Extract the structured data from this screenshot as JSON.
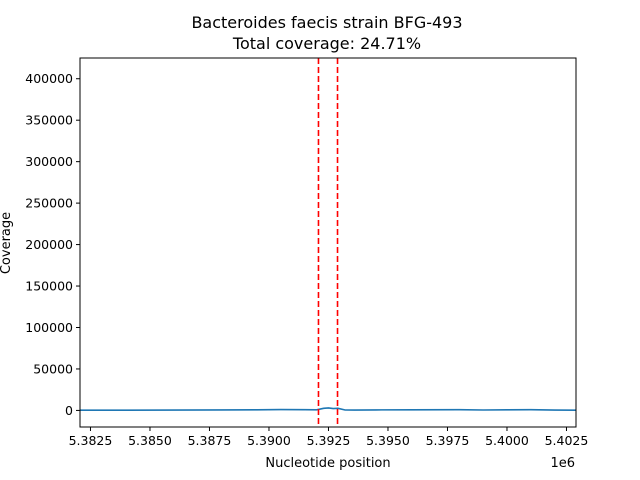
{
  "chart_data": {
    "type": "line",
    "title": "Bacteroides faecis strain BFG-493",
    "subtitle": "Total coverage: 24.71%",
    "xlabel": "Nucleotide position",
    "ylabel": "Coverage",
    "x_offset_label": "1e6",
    "xlim": [
      5382060,
      5402900
    ],
    "ylim": [
      -20000,
      425000
    ],
    "xticks": [
      {
        "value": 5382500,
        "label": "5.3825"
      },
      {
        "value": 5385000,
        "label": "5.3850"
      },
      {
        "value": 5387500,
        "label": "5.3875"
      },
      {
        "value": 5390000,
        "label": "5.3900"
      },
      {
        "value": 5392500,
        "label": "5.3925"
      },
      {
        "value": 5395000,
        "label": "5.3950"
      },
      {
        "value": 5397500,
        "label": "5.3975"
      },
      {
        "value": 5400000,
        "label": "5.4000"
      },
      {
        "value": 5402500,
        "label": "5.4025"
      }
    ],
    "yticks": [
      {
        "value": 0,
        "label": "0"
      },
      {
        "value": 50000,
        "label": "50000"
      },
      {
        "value": 100000,
        "label": "100000"
      },
      {
        "value": 150000,
        "label": "150000"
      },
      {
        "value": 200000,
        "label": "200000"
      },
      {
        "value": 250000,
        "label": "250000"
      },
      {
        "value": 300000,
        "label": "300000"
      },
      {
        "value": 350000,
        "label": "350000"
      },
      {
        "value": 400000,
        "label": "400000"
      }
    ],
    "series": [
      {
        "color": "#1f77b4",
        "x": [
          5382060,
          5384000,
          5386000,
          5388000,
          5389500,
          5390500,
          5391500,
          5392000,
          5392300,
          5392500,
          5392700,
          5392900,
          5393200,
          5393600,
          5394500,
          5396000,
          5398000,
          5399000,
          5400000,
          5401000,
          5402000,
          5402900
        ],
        "y": [
          200,
          300,
          400,
          600,
          800,
          1000,
          900,
          700,
          2500,
          3000,
          2200,
          2600,
          500,
          400,
          600,
          800,
          900,
          500,
          700,
          900,
          400,
          300
        ]
      }
    ],
    "vlines": [
      {
        "x": 5392080,
        "color": "#ff0000",
        "style": "dashed"
      },
      {
        "x": 5392880,
        "color": "#ff0000",
        "style": "dashed"
      }
    ],
    "grid": false,
    "legend": "none"
  }
}
